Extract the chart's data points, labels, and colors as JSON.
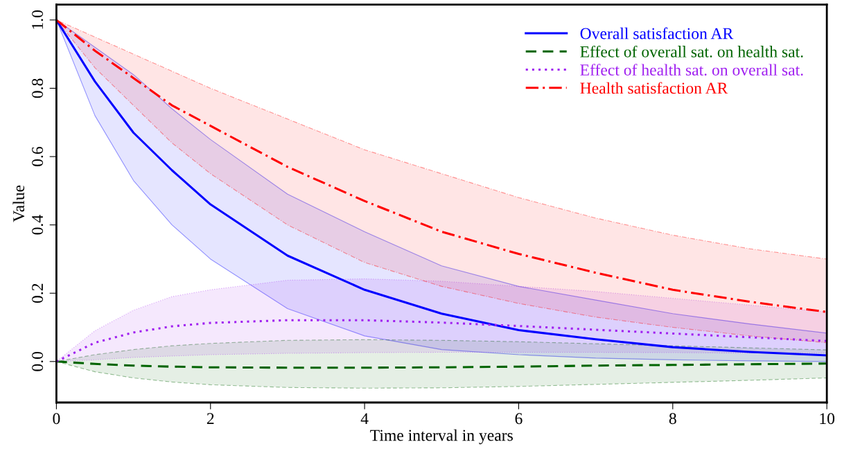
{
  "chart_data": {
    "type": "line",
    "xlabel": "Time interval in years",
    "ylabel": "Value",
    "x": [
      0,
      0.5,
      1,
      1.5,
      2,
      3,
      4,
      5,
      6,
      7,
      8,
      9,
      10
    ],
    "xlim": [
      0,
      10
    ],
    "ylim": [
      -0.12,
      1.045
    ],
    "xticks": [
      0,
      2,
      4,
      6,
      8,
      10
    ],
    "yticks": [
      {
        "value": 0,
        "label": "0.0"
      },
      {
        "value": 0.2,
        "label": "0.2"
      },
      {
        "value": 0.4,
        "label": "0.4"
      },
      {
        "value": 0.6,
        "label": "0.6"
      },
      {
        "value": 0.8,
        "label": "0.8"
      },
      {
        "value": 1,
        "label": "1.0"
      }
    ],
    "legend": "top right",
    "grid": false,
    "series": [
      {
        "name": "Overall satisfaction AR",
        "color": "#0000ff",
        "line_style": "solid",
        "values": [
          1,
          0.82,
          0.67,
          0.56,
          0.46,
          0.31,
          0.21,
          0.14,
          0.092,
          0.065,
          0.042,
          0.028,
          0.018
        ],
        "lower": [
          1,
          0.72,
          0.53,
          0.4,
          0.3,
          0.155,
          0.075,
          0.035,
          0.02,
          0.01,
          0.005,
          0.002,
          0.0
        ],
        "upper": [
          1,
          0.92,
          0.84,
          0.74,
          0.65,
          0.49,
          0.38,
          0.28,
          0.22,
          0.18,
          0.14,
          0.11,
          0.083
        ]
      },
      {
        "name": "Effect of overall sat. on health sat.",
        "color": "#006400",
        "line_style": "dashed",
        "values": [
          0,
          -0.007,
          -0.012,
          -0.015,
          -0.017,
          -0.018,
          -0.018,
          -0.017,
          -0.015,
          -0.012,
          -0.01,
          -0.008,
          -0.006
        ],
        "lower": [
          0,
          -0.03,
          -0.048,
          -0.06,
          -0.068,
          -0.076,
          -0.078,
          -0.077,
          -0.073,
          -0.067,
          -0.061,
          -0.055,
          -0.048
        ],
        "upper": [
          0,
          0.02,
          0.035,
          0.046,
          0.053,
          0.062,
          0.064,
          0.062,
          0.058,
          0.052,
          0.046,
          0.04,
          0.034
        ]
      },
      {
        "name": "Effect of health sat. on overall sat.",
        "color": "#a020f0",
        "line_style": "dotted",
        "values": [
          0,
          0.055,
          0.085,
          0.103,
          0.113,
          0.121,
          0.121,
          0.114,
          0.104,
          0.093,
          0.082,
          0.071,
          0.06
        ],
        "lower": [
          0,
          0.005,
          0.012,
          0.016,
          0.02,
          0.024,
          0.026,
          0.027,
          0.027,
          0.027,
          0.026,
          0.025,
          0.025
        ],
        "upper": [
          0,
          0.09,
          0.15,
          0.19,
          0.21,
          0.238,
          0.242,
          0.235,
          0.22,
          0.205,
          0.185,
          0.165,
          0.145
        ]
      },
      {
        "name": "Health satisfaction AR",
        "color": "#ff0000",
        "line_style": "dashdot",
        "values": [
          1,
          0.91,
          0.83,
          0.75,
          0.69,
          0.57,
          0.47,
          0.38,
          0.315,
          0.26,
          0.21,
          0.175,
          0.145
        ],
        "lower": [
          1,
          0.86,
          0.75,
          0.64,
          0.55,
          0.4,
          0.29,
          0.22,
          0.17,
          0.13,
          0.1,
          0.075,
          0.055
        ],
        "upper": [
          1,
          0.95,
          0.9,
          0.85,
          0.8,
          0.71,
          0.62,
          0.55,
          0.48,
          0.42,
          0.37,
          0.33,
          0.3
        ]
      }
    ]
  }
}
